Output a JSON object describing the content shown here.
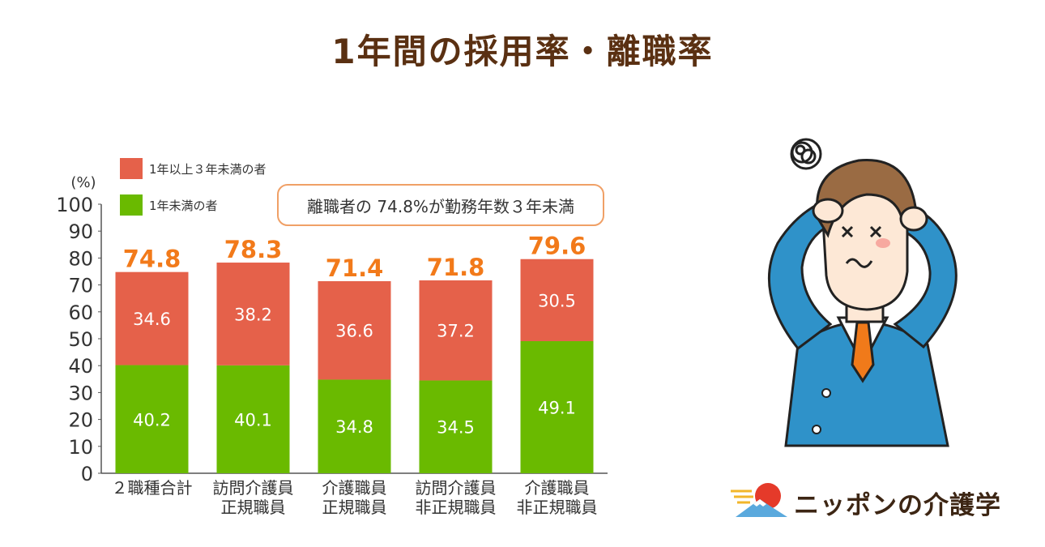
{
  "page": {
    "title": "1年間の採用率・離職率"
  },
  "callout": {
    "text": "離職者の 74.8%が勤務年数３年未満"
  },
  "logo": {
    "text": "ニッポンの介護学"
  },
  "colors": {
    "under_one_year": "#6aba00",
    "one_to_three": "#e5614a",
    "total_label": "#f27a1a",
    "title": "#5a3012",
    "callout_border": "#f0a066"
  },
  "chart_data": {
    "type": "bar",
    "stacked": true,
    "unit_label": "(%)",
    "ylim": [
      0,
      100
    ],
    "yticks": [
      0,
      10,
      20,
      30,
      40,
      50,
      60,
      70,
      80,
      90,
      100
    ],
    "categories": [
      [
        "２職種合計"
      ],
      [
        "訪問介護員",
        "正規職員"
      ],
      [
        "介護職員",
        "正規職員"
      ],
      [
        "訪問介護員",
        "非正規職員"
      ],
      [
        "介護職員",
        "非正規職員"
      ]
    ],
    "series": [
      {
        "name": "1年未満の者",
        "values": [
          40.2,
          40.1,
          34.8,
          34.5,
          49.1
        ]
      },
      {
        "name": "1年以上３年未満の者",
        "values": [
          34.6,
          38.2,
          36.6,
          37.2,
          30.5
        ]
      }
    ],
    "totals": [
      "74.8",
      "78.3",
      "71.4",
      "71.8",
      "79.6"
    ],
    "legend": [
      {
        "label": "1年以上３年未満の者"
      },
      {
        "label": "1年未満の者"
      }
    ]
  }
}
